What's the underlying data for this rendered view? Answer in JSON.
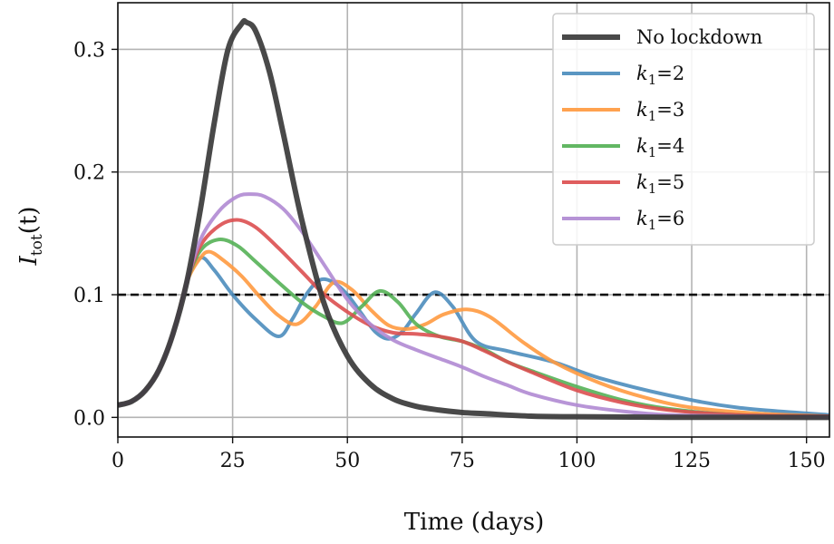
{
  "chart_data": {
    "type": "line",
    "xlabel": "Time (days)",
    "ylabel_main": "I",
    "ylabel_sub": "tot",
    "ylabel_tail": "(t)",
    "xlim": [
      0,
      155
    ],
    "ylim": [
      -0.016,
      0.338
    ],
    "x_ticks": [
      0,
      25,
      50,
      75,
      100,
      125,
      150
    ],
    "x_tick_labels": [
      "0",
      "25",
      "50",
      "75",
      "100",
      "125",
      "150"
    ],
    "y_ticks": [
      0.0,
      0.1,
      0.2,
      0.3
    ],
    "y_tick_labels": [
      "0.0",
      "0.1",
      "0.2",
      "0.3"
    ],
    "grid": true,
    "legend_position": "top-right",
    "threshold": {
      "value": 0.1,
      "color": "#111111",
      "style": "dashed"
    },
    "series": [
      {
        "name": "No lockdown",
        "legend_label": "No lockdown",
        "color": "#3a3a3a",
        "x": [
          0,
          3,
          6,
          9,
          12,
          15,
          18,
          21,
          24,
          27,
          28,
          30,
          33,
          36,
          40,
          45,
          50,
          55,
          60,
          65,
          70,
          75,
          80,
          90,
          100,
          120,
          155
        ],
        "y": [
          0.01,
          0.013,
          0.022,
          0.039,
          0.068,
          0.11,
          0.17,
          0.24,
          0.3,
          0.321,
          0.322,
          0.315,
          0.282,
          0.232,
          0.162,
          0.092,
          0.05,
          0.027,
          0.015,
          0.009,
          0.006,
          0.004,
          0.003,
          0.001,
          0.0005,
          0.0001,
          0.0
        ]
      },
      {
        "name": "k1=2",
        "legend_k": "k",
        "legend_sub": "1",
        "legend_value": "=2",
        "color": "#4c8dbd",
        "x": [
          0,
          3,
          6,
          9,
          12,
          15,
          18,
          21,
          25,
          30,
          35,
          38,
          41,
          44,
          47,
          50,
          53,
          56,
          59,
          62,
          65,
          69,
          73,
          78,
          85,
          95,
          105,
          120,
          135,
          155
        ],
        "y": [
          0.01,
          0.013,
          0.022,
          0.039,
          0.068,
          0.11,
          0.13,
          0.12,
          0.1,
          0.08,
          0.066,
          0.08,
          0.1,
          0.112,
          0.11,
          0.1,
          0.085,
          0.07,
          0.064,
          0.07,
          0.085,
          0.102,
          0.09,
          0.062,
          0.054,
          0.045,
          0.032,
          0.018,
          0.008,
          0.002
        ]
      },
      {
        "name": "k1=3",
        "legend_k": "k",
        "legend_sub": "1",
        "legend_value": "=3",
        "color": "#ff9a40",
        "x": [
          0,
          3,
          6,
          9,
          12,
          15,
          18,
          20,
          23,
          27,
          31,
          35,
          39,
          43,
          47,
          51,
          55,
          59,
          63,
          67,
          71,
          76,
          81,
          88,
          95,
          105,
          115,
          125,
          140,
          155
        ],
        "y": [
          0.01,
          0.013,
          0.022,
          0.039,
          0.068,
          0.11,
          0.13,
          0.135,
          0.128,
          0.115,
          0.098,
          0.083,
          0.076,
          0.09,
          0.11,
          0.104,
          0.088,
          0.075,
          0.072,
          0.076,
          0.084,
          0.088,
          0.082,
          0.062,
          0.045,
          0.028,
          0.016,
          0.008,
          0.003,
          0.001
        ]
      },
      {
        "name": "k1=4",
        "legend_k": "k",
        "legend_sub": "1",
        "legend_value": "=4",
        "color": "#55b156",
        "x": [
          0,
          3,
          6,
          9,
          12,
          15,
          18,
          22,
          26,
          30,
          35,
          40,
          45,
          49,
          53,
          57,
          61,
          65,
          70,
          75,
          80,
          85,
          90,
          100,
          110,
          120,
          135,
          155
        ],
        "y": [
          0.01,
          0.013,
          0.022,
          0.039,
          0.068,
          0.11,
          0.136,
          0.145,
          0.14,
          0.127,
          0.11,
          0.094,
          0.082,
          0.077,
          0.09,
          0.103,
          0.094,
          0.076,
          0.066,
          0.062,
          0.055,
          0.045,
          0.038,
          0.025,
          0.014,
          0.007,
          0.002,
          0.001
        ]
      },
      {
        "name": "k1=5",
        "legend_k": "k",
        "legend_sub": "1",
        "legend_value": "=5",
        "color": "#dc4f50",
        "x": [
          0,
          3,
          6,
          9,
          12,
          15,
          18,
          22,
          26,
          30,
          35,
          40,
          45,
          50,
          55,
          60,
          65,
          70,
          75,
          80,
          85,
          90,
          100,
          110,
          120,
          135,
          155
        ],
        "y": [
          0.01,
          0.013,
          0.022,
          0.039,
          0.068,
          0.11,
          0.14,
          0.156,
          0.161,
          0.155,
          0.138,
          0.119,
          0.1,
          0.086,
          0.075,
          0.069,
          0.068,
          0.066,
          0.062,
          0.054,
          0.045,
          0.037,
          0.022,
          0.012,
          0.006,
          0.002,
          0.001
        ]
      },
      {
        "name": "k1=6",
        "legend_k": "k",
        "legend_sub": "1",
        "legend_value": "=6",
        "color": "#b08ad3",
        "x": [
          0,
          3,
          6,
          9,
          12,
          15,
          18,
          22,
          26,
          29,
          32,
          36,
          40,
          45,
          50,
          55,
          60,
          65,
          70,
          75,
          80,
          85,
          90,
          100,
          110,
          120,
          135,
          155
        ],
        "y": [
          0.01,
          0.013,
          0.022,
          0.039,
          0.068,
          0.11,
          0.145,
          0.168,
          0.18,
          0.182,
          0.18,
          0.17,
          0.152,
          0.124,
          0.096,
          0.076,
          0.063,
          0.055,
          0.048,
          0.041,
          0.033,
          0.026,
          0.019,
          0.01,
          0.005,
          0.002,
          0.001,
          0.0
        ]
      }
    ]
  }
}
